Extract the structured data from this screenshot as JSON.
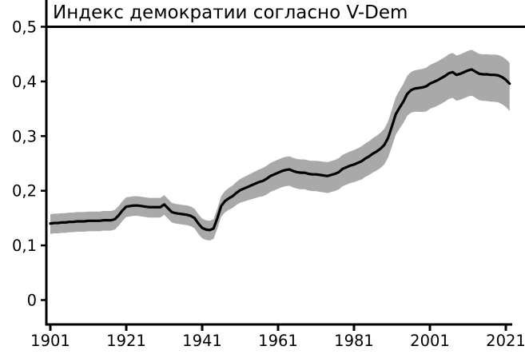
{
  "colors": {
    "line": "#000000",
    "band": "#a9a9a9",
    "axis": "#000000",
    "text": "#000000",
    "background": "#ffffff"
  },
  "chart_data": {
    "type": "line",
    "title": "Индекс демократии согласно V-Dem",
    "xlabel": "",
    "ylabel": "",
    "grid": false,
    "legend": "none",
    "xlim": [
      1901,
      2022
    ],
    "ylim": [
      0,
      0.5
    ],
    "x_ticks": [
      1901,
      1921,
      1941,
      1961,
      1981,
      2001,
      2021
    ],
    "x_tick_labels": [
      "1901",
      "1921",
      "1941",
      "1961",
      "1981",
      "2001",
      "2021"
    ],
    "y_ticks": [
      0,
      0.1,
      0.2,
      0.3,
      0.4,
      0.5
    ],
    "y_tick_labels": [
      "0",
      "0,1",
      "0,2",
      "0,3",
      "0,4",
      "0,5"
    ],
    "x_start": 1901,
    "x_end": 2022,
    "series": {
      "values": [
        0.14,
        0.141,
        0.141,
        0.142,
        0.142,
        0.143,
        0.143,
        0.144,
        0.144,
        0.144,
        0.145,
        0.145,
        0.145,
        0.145,
        0.146,
        0.146,
        0.146,
        0.148,
        0.155,
        0.164,
        0.171,
        0.172,
        0.173,
        0.173,
        0.172,
        0.171,
        0.17,
        0.17,
        0.17,
        0.17,
        0.175,
        0.168,
        0.161,
        0.159,
        0.158,
        0.157,
        0.156,
        0.154,
        0.15,
        0.14,
        0.132,
        0.129,
        0.128,
        0.131,
        0.15,
        0.172,
        0.181,
        0.186,
        0.19,
        0.196,
        0.201,
        0.204,
        0.207,
        0.21,
        0.213,
        0.216,
        0.218,
        0.222,
        0.227,
        0.23,
        0.233,
        0.236,
        0.238,
        0.239,
        0.236,
        0.234,
        0.233,
        0.233,
        0.231,
        0.23,
        0.23,
        0.229,
        0.228,
        0.227,
        0.229,
        0.231,
        0.234,
        0.24,
        0.243,
        0.246,
        0.248,
        0.251,
        0.254,
        0.259,
        0.263,
        0.268,
        0.272,
        0.277,
        0.284,
        0.297,
        0.318,
        0.34,
        0.352,
        0.363,
        0.377,
        0.384,
        0.387,
        0.388,
        0.389,
        0.391,
        0.396,
        0.399,
        0.402,
        0.406,
        0.41,
        0.415,
        0.417,
        0.412,
        0.414,
        0.417,
        0.42,
        0.422,
        0.418,
        0.414,
        0.413,
        0.413,
        0.412,
        0.412,
        0.411,
        0.408,
        0.403,
        0.396
      ]
    },
    "band_offsets": [
      {
        "year": 1901,
        "below": 0.019,
        "above": 0.017
      },
      {
        "year": 1944,
        "below": 0.019,
        "above": 0.017
      },
      {
        "year": 1950,
        "below": 0.022,
        "above": 0.02
      },
      {
        "year": 1958,
        "below": 0.029,
        "above": 0.024
      },
      {
        "year": 1965,
        "below": 0.03,
        "above": 0.024
      },
      {
        "year": 1980,
        "below": 0.032,
        "above": 0.026
      },
      {
        "year": 1990,
        "below": 0.036,
        "above": 0.03
      },
      {
        "year": 1995,
        "below": 0.04,
        "above": 0.033
      },
      {
        "year": 2000,
        "below": 0.046,
        "above": 0.034
      },
      {
        "year": 2012,
        "below": 0.048,
        "above": 0.036
      },
      {
        "year": 2022,
        "below": 0.05,
        "above": 0.038
      }
    ]
  }
}
